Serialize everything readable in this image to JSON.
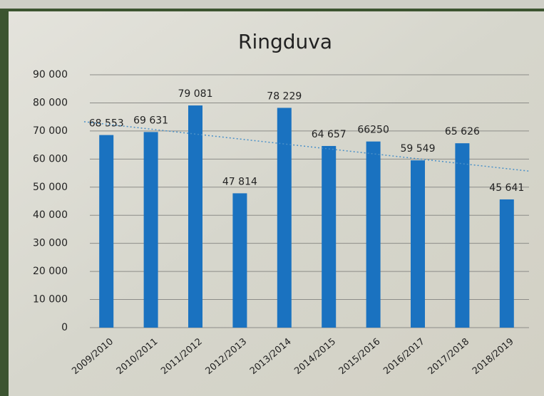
{
  "chart_data": {
    "type": "bar",
    "title": "Ringduva",
    "categories": [
      "2009/2010",
      "2010/2011",
      "2011/2012",
      "2012/2013",
      "2013/2014",
      "2014/2015",
      "2015/2016",
      "2016/2017",
      "2017/2018",
      "2018/2019"
    ],
    "values": [
      68553,
      69631,
      79081,
      47814,
      78229,
      64657,
      66250,
      59549,
      65626,
      45641
    ],
    "value_labels": [
      "68 553",
      "69 631",
      "79 081",
      "47 814",
      "78 229",
      "64 657",
      "66250",
      "59 549",
      "65 626",
      "45 641"
    ],
    "color": "#1a72c0",
    "ylim": [
      0,
      90000
    ],
    "yticks": [
      0,
      {
        "value": 10000,
        "label": "10 000"
      },
      {
        "value": 20000,
        "label": "20 000"
      },
      {
        "value": 30000,
        "label": "30 000"
      },
      {
        "value": 40000,
        "label": "40 000"
      },
      {
        "value": 50000,
        "label": "50 000"
      },
      {
        "value": 60000,
        "label": "60 000"
      },
      {
        "value": 70000,
        "label": "70 000"
      },
      {
        "value": 80000,
        "label": "80 000"
      },
      {
        "value": 90000,
        "label": "90 000"
      }
    ],
    "grid": true,
    "trendline": true
  }
}
